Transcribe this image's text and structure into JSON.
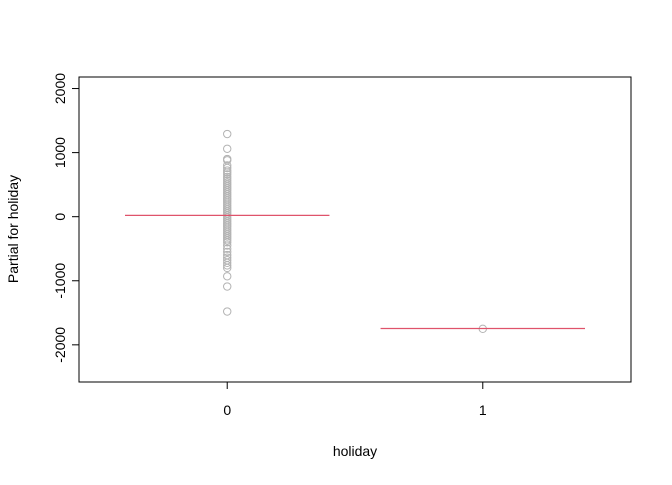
{
  "chart_data": {
    "type": "scatter",
    "title": "",
    "xlabel": "holiday",
    "ylabel": "Partial for holiday",
    "categories": [
      "0",
      "1"
    ],
    "x_positions": [
      0,
      1
    ],
    "xlim": [
      -0.58,
      1.58
    ],
    "ylim": [
      -2580,
      2180
    ],
    "y_ticks": [
      -2000,
      -1000,
      0,
      1000,
      2000
    ],
    "y_tick_labels": [
      "-2000",
      "-1000",
      "0",
      "1000",
      "2000"
    ],
    "x_ticks": [
      0,
      1
    ],
    "x_tick_labels": [
      "0",
      "1"
    ],
    "grid": false,
    "legend": "none",
    "point_color": "#b3b3b3",
    "line_color": "#df536b",
    "series": [
      {
        "kind": "partial_residuals",
        "points": [
          {
            "x": 0,
            "y": 1290
          },
          {
            "x": 0,
            "y": 1060
          },
          {
            "x": 0,
            "y": 900
          },
          {
            "x": 0,
            "y": 880
          },
          {
            "x": 0,
            "y": 800
          },
          {
            "x": 0,
            "y": 760
          },
          {
            "x": 0,
            "y": 720
          },
          {
            "x": 0,
            "y": 690
          },
          {
            "x": 0,
            "y": 660
          },
          {
            "x": 0,
            "y": 620
          },
          {
            "x": 0,
            "y": 590
          },
          {
            "x": 0,
            "y": 560
          },
          {
            "x": 0,
            "y": 530
          },
          {
            "x": 0,
            "y": 500
          },
          {
            "x": 0,
            "y": 470
          },
          {
            "x": 0,
            "y": 440
          },
          {
            "x": 0,
            "y": 410
          },
          {
            "x": 0,
            "y": 380
          },
          {
            "x": 0,
            "y": 350
          },
          {
            "x": 0,
            "y": 320
          },
          {
            "x": 0,
            "y": 290
          },
          {
            "x": 0,
            "y": 260
          },
          {
            "x": 0,
            "y": 230
          },
          {
            "x": 0,
            "y": 200
          },
          {
            "x": 0,
            "y": 170
          },
          {
            "x": 0,
            "y": 140
          },
          {
            "x": 0,
            "y": 110
          },
          {
            "x": 0,
            "y": 80
          },
          {
            "x": 0,
            "y": 50
          },
          {
            "x": 0,
            "y": 20
          },
          {
            "x": 0,
            "y": -10
          },
          {
            "x": 0,
            "y": -40
          },
          {
            "x": 0,
            "y": -70
          },
          {
            "x": 0,
            "y": -100
          },
          {
            "x": 0,
            "y": -130
          },
          {
            "x": 0,
            "y": -160
          },
          {
            "x": 0,
            "y": -190
          },
          {
            "x": 0,
            "y": -220
          },
          {
            "x": 0,
            "y": -250
          },
          {
            "x": 0,
            "y": -280
          },
          {
            "x": 0,
            "y": -310
          },
          {
            "x": 0,
            "y": -340
          },
          {
            "x": 0,
            "y": -370
          },
          {
            "x": 0,
            "y": -400
          },
          {
            "x": 0,
            "y": -450
          },
          {
            "x": 0,
            "y": -500
          },
          {
            "x": 0,
            "y": -550
          },
          {
            "x": 0,
            "y": -600
          },
          {
            "x": 0,
            "y": -640
          },
          {
            "x": 0,
            "y": -680
          },
          {
            "x": 0,
            "y": -720
          },
          {
            "x": 0,
            "y": -760
          },
          {
            "x": 0,
            "y": -800
          },
          {
            "x": 0,
            "y": -930
          },
          {
            "x": 0,
            "y": -1090
          },
          {
            "x": 0,
            "y": -1480
          },
          {
            "x": 1,
            "y": -1750
          }
        ]
      },
      {
        "kind": "term_segments",
        "segments": [
          {
            "x0": -0.4,
            "x1": 0.4,
            "y": 20
          },
          {
            "x0": 0.6,
            "x1": 1.4,
            "y": -1745
          }
        ]
      }
    ]
  }
}
